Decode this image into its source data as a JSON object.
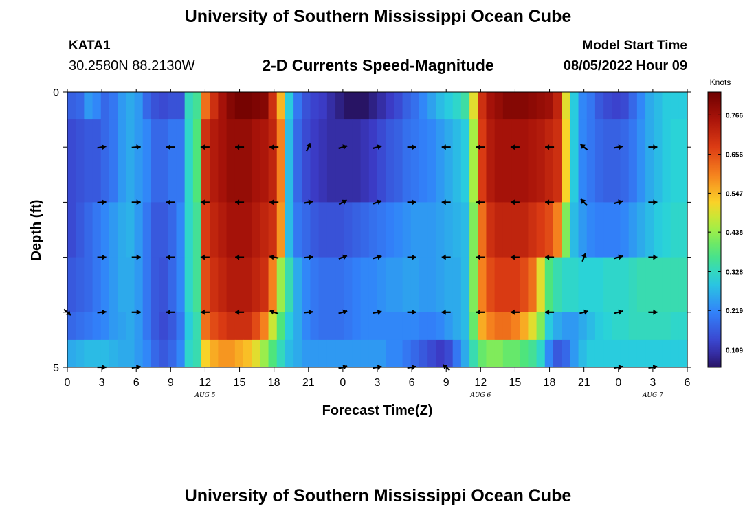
{
  "header": {
    "title": "University of Southern Mississippi Ocean Cube",
    "station_id": "KATA1",
    "station_coords": "30.2580N  88.2130W",
    "plot_title": "2-D Currents Speed-Magnitude",
    "model_start_label": "Model Start Time",
    "model_start_time": "08/05/2022 Hour 09"
  },
  "footer": {
    "title": "University of Southern Mississippi Ocean Cube"
  },
  "chart_data": {
    "type": "heatmap",
    "title": "2-D Currents Speed-Magnitude",
    "xlabel": "Forecast Time(Z)",
    "ylabel": "Depth (ft)",
    "x_tick_labels": [
      "0",
      "3",
      "6",
      "9",
      "12",
      "15",
      "18",
      "21",
      "0",
      "3",
      "6",
      "9",
      "12",
      "15",
      "18",
      "21",
      "0",
      "3",
      "6"
    ],
    "x_range_hours": [
      0,
      54
    ],
    "y_tick_labels": [
      "0",
      "5"
    ],
    "y_range": [
      0,
      5
    ],
    "y_minor_ticks": [
      1,
      2,
      3,
      4
    ],
    "date_labels": [
      {
        "text": "AUG 5",
        "hour": 12
      },
      {
        "text": "AUG 6",
        "hour": 36
      },
      {
        "text": "AUG 7",
        "hour": 51
      }
    ],
    "colorbar": {
      "label": "Knots",
      "min": 0.06,
      "max": 0.83,
      "ticks": [
        0.109,
        0.219,
        0.328,
        0.438,
        0.547,
        0.656,
        0.766
      ],
      "tick_labels": [
        "0.109",
        "0.219",
        "0.328",
        "0.438",
        "0.547",
        "0.656",
        "0.766"
      ]
    },
    "layer_bounds": [
      0,
      0.5,
      2,
      3,
      4,
      4.5,
      5
    ],
    "speed_knots": [
      [
        0.17,
        0.18,
        0.24,
        0.22,
        0.18,
        0.2,
        0.24,
        0.26,
        0.24,
        0.18,
        0.15,
        0.14,
        0.15,
        0.15,
        0.33,
        0.36,
        0.62,
        0.7,
        0.76,
        0.8,
        0.82,
        0.82,
        0.81,
        0.8,
        0.7,
        0.55,
        0.3,
        0.2,
        0.15,
        0.13,
        0.12,
        0.1,
        0.08,
        0.06,
        0.05,
        0.06,
        0.08,
        0.1,
        0.12,
        0.14,
        0.17,
        0.19,
        0.22,
        0.25,
        0.28,
        0.3,
        0.32,
        0.35,
        0.5,
        0.7,
        0.76,
        0.78,
        0.8,
        0.8,
        0.8,
        0.79,
        0.78,
        0.77,
        0.72,
        0.5,
        0.3,
        0.22,
        0.2,
        0.16,
        0.14,
        0.13,
        0.14,
        0.18,
        0.22,
        0.26,
        0.28,
        0.3,
        0.3,
        0.3
      ],
      [
        0.14,
        0.15,
        0.16,
        0.16,
        0.18,
        0.2,
        0.24,
        0.26,
        0.24,
        0.22,
        0.18,
        0.18,
        0.2,
        0.2,
        0.32,
        0.38,
        0.7,
        0.74,
        0.76,
        0.78,
        0.78,
        0.78,
        0.76,
        0.75,
        0.72,
        0.6,
        0.28,
        0.18,
        0.14,
        0.12,
        0.11,
        0.1,
        0.1,
        0.1,
        0.1,
        0.11,
        0.12,
        0.14,
        0.16,
        0.17,
        0.19,
        0.2,
        0.21,
        0.22,
        0.24,
        0.26,
        0.28,
        0.3,
        0.45,
        0.68,
        0.74,
        0.76,
        0.76,
        0.76,
        0.76,
        0.75,
        0.74,
        0.72,
        0.7,
        0.52,
        0.3,
        0.22,
        0.2,
        0.18,
        0.17,
        0.17,
        0.18,
        0.2,
        0.23,
        0.26,
        0.28,
        0.3,
        0.31,
        0.31
      ],
      [
        0.14,
        0.16,
        0.18,
        0.2,
        0.22,
        0.24,
        0.26,
        0.27,
        0.24,
        0.2,
        0.16,
        0.16,
        0.18,
        0.22,
        0.32,
        0.36,
        0.68,
        0.72,
        0.74,
        0.76,
        0.76,
        0.76,
        0.74,
        0.72,
        0.7,
        0.58,
        0.28,
        0.2,
        0.18,
        0.16,
        0.15,
        0.15,
        0.15,
        0.16,
        0.17,
        0.18,
        0.19,
        0.2,
        0.21,
        0.22,
        0.23,
        0.24,
        0.24,
        0.24,
        0.25,
        0.26,
        0.27,
        0.28,
        0.42,
        0.62,
        0.7,
        0.72,
        0.72,
        0.72,
        0.72,
        0.7,
        0.68,
        0.66,
        0.6,
        0.42,
        0.28,
        0.24,
        0.22,
        0.21,
        0.21,
        0.21,
        0.22,
        0.24,
        0.26,
        0.28,
        0.3,
        0.31,
        0.32,
        0.32
      ],
      [
        0.16,
        0.17,
        0.18,
        0.2,
        0.22,
        0.24,
        0.26,
        0.26,
        0.24,
        0.2,
        0.16,
        0.15,
        0.18,
        0.22,
        0.32,
        0.36,
        0.66,
        0.7,
        0.72,
        0.74,
        0.74,
        0.74,
        0.72,
        0.7,
        0.6,
        0.44,
        0.34,
        0.26,
        0.22,
        0.2,
        0.19,
        0.19,
        0.19,
        0.2,
        0.21,
        0.22,
        0.22,
        0.23,
        0.24,
        0.24,
        0.25,
        0.25,
        0.24,
        0.24,
        0.25,
        0.26,
        0.26,
        0.28,
        0.42,
        0.6,
        0.66,
        0.68,
        0.68,
        0.68,
        0.66,
        0.62,
        0.5,
        0.38,
        0.34,
        0.32,
        0.32,
        0.31,
        0.31,
        0.31,
        0.32,
        0.32,
        0.32,
        0.33,
        0.34,
        0.34,
        0.34,
        0.34,
        0.34,
        0.34
      ],
      [
        0.18,
        0.19,
        0.2,
        0.21,
        0.22,
        0.24,
        0.25,
        0.26,
        0.24,
        0.2,
        0.16,
        0.14,
        0.16,
        0.2,
        0.3,
        0.34,
        0.62,
        0.66,
        0.68,
        0.7,
        0.7,
        0.7,
        0.66,
        0.6,
        0.48,
        0.38,
        0.3,
        0.26,
        0.22,
        0.2,
        0.19,
        0.19,
        0.19,
        0.2,
        0.21,
        0.22,
        0.22,
        0.22,
        0.22,
        0.22,
        0.22,
        0.22,
        0.21,
        0.21,
        0.22,
        0.24,
        0.26,
        0.28,
        0.4,
        0.56,
        0.6,
        0.62,
        0.62,
        0.6,
        0.56,
        0.5,
        0.42,
        0.3,
        0.26,
        0.24,
        0.24,
        0.26,
        0.28,
        0.3,
        0.31,
        0.32,
        0.32,
        0.33,
        0.33,
        0.33,
        0.33,
        0.33,
        0.32,
        0.32
      ],
      [
        0.26,
        0.27,
        0.28,
        0.28,
        0.28,
        0.27,
        0.26,
        0.26,
        0.24,
        0.22,
        0.18,
        0.16,
        0.18,
        0.22,
        0.32,
        0.34,
        0.52,
        0.56,
        0.58,
        0.58,
        0.56,
        0.54,
        0.5,
        0.44,
        0.38,
        0.33,
        0.28,
        0.26,
        0.24,
        0.24,
        0.24,
        0.24,
        0.24,
        0.24,
        0.24,
        0.24,
        0.24,
        0.24,
        0.22,
        0.22,
        0.2,
        0.18,
        0.16,
        0.14,
        0.12,
        0.14,
        0.2,
        0.26,
        0.34,
        0.4,
        0.42,
        0.42,
        0.4,
        0.4,
        0.38,
        0.36,
        0.32,
        0.22,
        0.16,
        0.18,
        0.24,
        0.28,
        0.3,
        0.3,
        0.3,
        0.3,
        0.3,
        0.3,
        0.3,
        0.3,
        0.3,
        0.3,
        0.3,
        0.3
      ]
    ],
    "vectors": {
      "times_hours": [
        0,
        3,
        6,
        9,
        12,
        15,
        18,
        21,
        24,
        27,
        30,
        33,
        36,
        39,
        42,
        45,
        48,
        51,
        54
      ],
      "depth_rows": [
        1,
        2,
        3,
        4,
        5
      ],
      "directions_deg": [
        [
          null,
          10,
          5,
          180,
          180,
          180,
          180,
          65,
          15,
          15,
          0,
          180,
          180,
          180,
          180,
          140,
          10,
          0,
          null
        ],
        [
          null,
          5,
          0,
          180,
          180,
          180,
          180,
          10,
          30,
          20,
          0,
          180,
          180,
          180,
          180,
          135,
          15,
          0,
          null
        ],
        [
          null,
          0,
          0,
          180,
          180,
          180,
          170,
          5,
          20,
          15,
          0,
          180,
          180,
          180,
          180,
          70,
          15,
          0,
          null
        ],
        [
          -40,
          5,
          0,
          180,
          180,
          180,
          160,
          5,
          15,
          10,
          0,
          180,
          180,
          180,
          180,
          15,
          15,
          0,
          null
        ],
        [
          null,
          0,
          10,
          null,
          null,
          null,
          null,
          null,
          15,
          10,
          10,
          140,
          null,
          null,
          null,
          null,
          10,
          10,
          null
        ]
      ]
    }
  }
}
